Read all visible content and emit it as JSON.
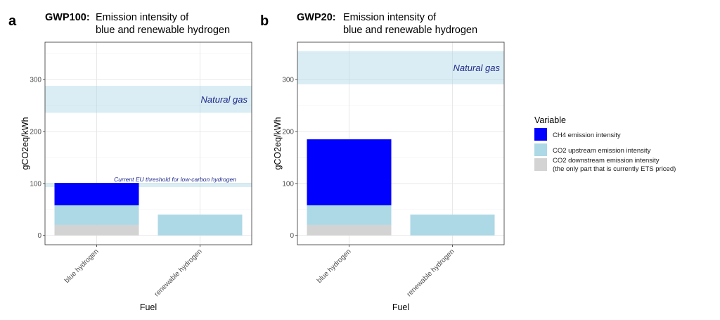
{
  "figure": {
    "panels": [
      {
        "letter": "a",
        "title_bold": "GWP100:",
        "title_line1": "Emission intensity of",
        "title_line2": "blue and renewable hydrogen"
      },
      {
        "letter": "b",
        "title_bold": "GWP20:",
        "title_line1": "Emission intensity of",
        "title_line2": "blue and renewable hydrogen"
      }
    ],
    "legend": {
      "title": "Variable",
      "items": [
        {
          "line1": "CH4 emission intensity",
          "line2": "",
          "color": "#0000FF"
        },
        {
          "line1": "CO2 upstream emission intensity",
          "line2": "",
          "color": "#ADD8E6"
        },
        {
          "line1": "CO2 downstream emission intensity",
          "line2": "(the only part that is currently ETS priced)",
          "color": "#D3D3D3"
        }
      ]
    }
  },
  "chart_data": [
    {
      "type": "bar",
      "stacked": true,
      "xlabel": "Fuel",
      "ylabel": "gCO2eq/kWh",
      "ylim": [
        -18,
        372
      ],
      "yticks": [
        0,
        100,
        200,
        300
      ],
      "categories": [
        "blue hydrogen",
        "renewable hydrogen"
      ],
      "series": [
        {
          "name": "CO2 downstream emission intensity",
          "values": [
            20,
            0
          ],
          "color": "#D3D3D3"
        },
        {
          "name": "CO2 upstream emission intensity",
          "values": [
            38,
            40
          ],
          "color": "#ADD8E6"
        },
        {
          "name": "CH4 emission intensity",
          "values": [
            43,
            0
          ],
          "color": "#0000FF"
        }
      ],
      "bands": [
        {
          "label": "Natural gas",
          "ymin": 236,
          "ymax": 288,
          "color": "#ADD8E6"
        },
        {
          "label": "Current EU threshold for low-carbon hydrogen",
          "ymin": 93,
          "ymax": 101,
          "color": "#ADD8E6"
        }
      ],
      "grid": true
    },
    {
      "type": "bar",
      "stacked": true,
      "xlabel": "Fuel",
      "ylabel": "gCO2eq/kWh",
      "ylim": [
        -18,
        372
      ],
      "yticks": [
        0,
        100,
        200,
        300
      ],
      "categories": [
        "blue hydrogen",
        "renewable hydrogen"
      ],
      "series": [
        {
          "name": "CO2 downstream emission intensity",
          "values": [
            20,
            0
          ],
          "color": "#D3D3D3"
        },
        {
          "name": "CO2 upstream emission intensity",
          "values": [
            38,
            40
          ],
          "color": "#ADD8E6"
        },
        {
          "name": "CH4 emission intensity",
          "values": [
            127,
            0
          ],
          "color": "#0000FF"
        }
      ],
      "bands": [
        {
          "label": "Natural gas",
          "ymin": 291,
          "ymax": 355,
          "color": "#ADD8E6"
        }
      ],
      "grid": true
    }
  ]
}
